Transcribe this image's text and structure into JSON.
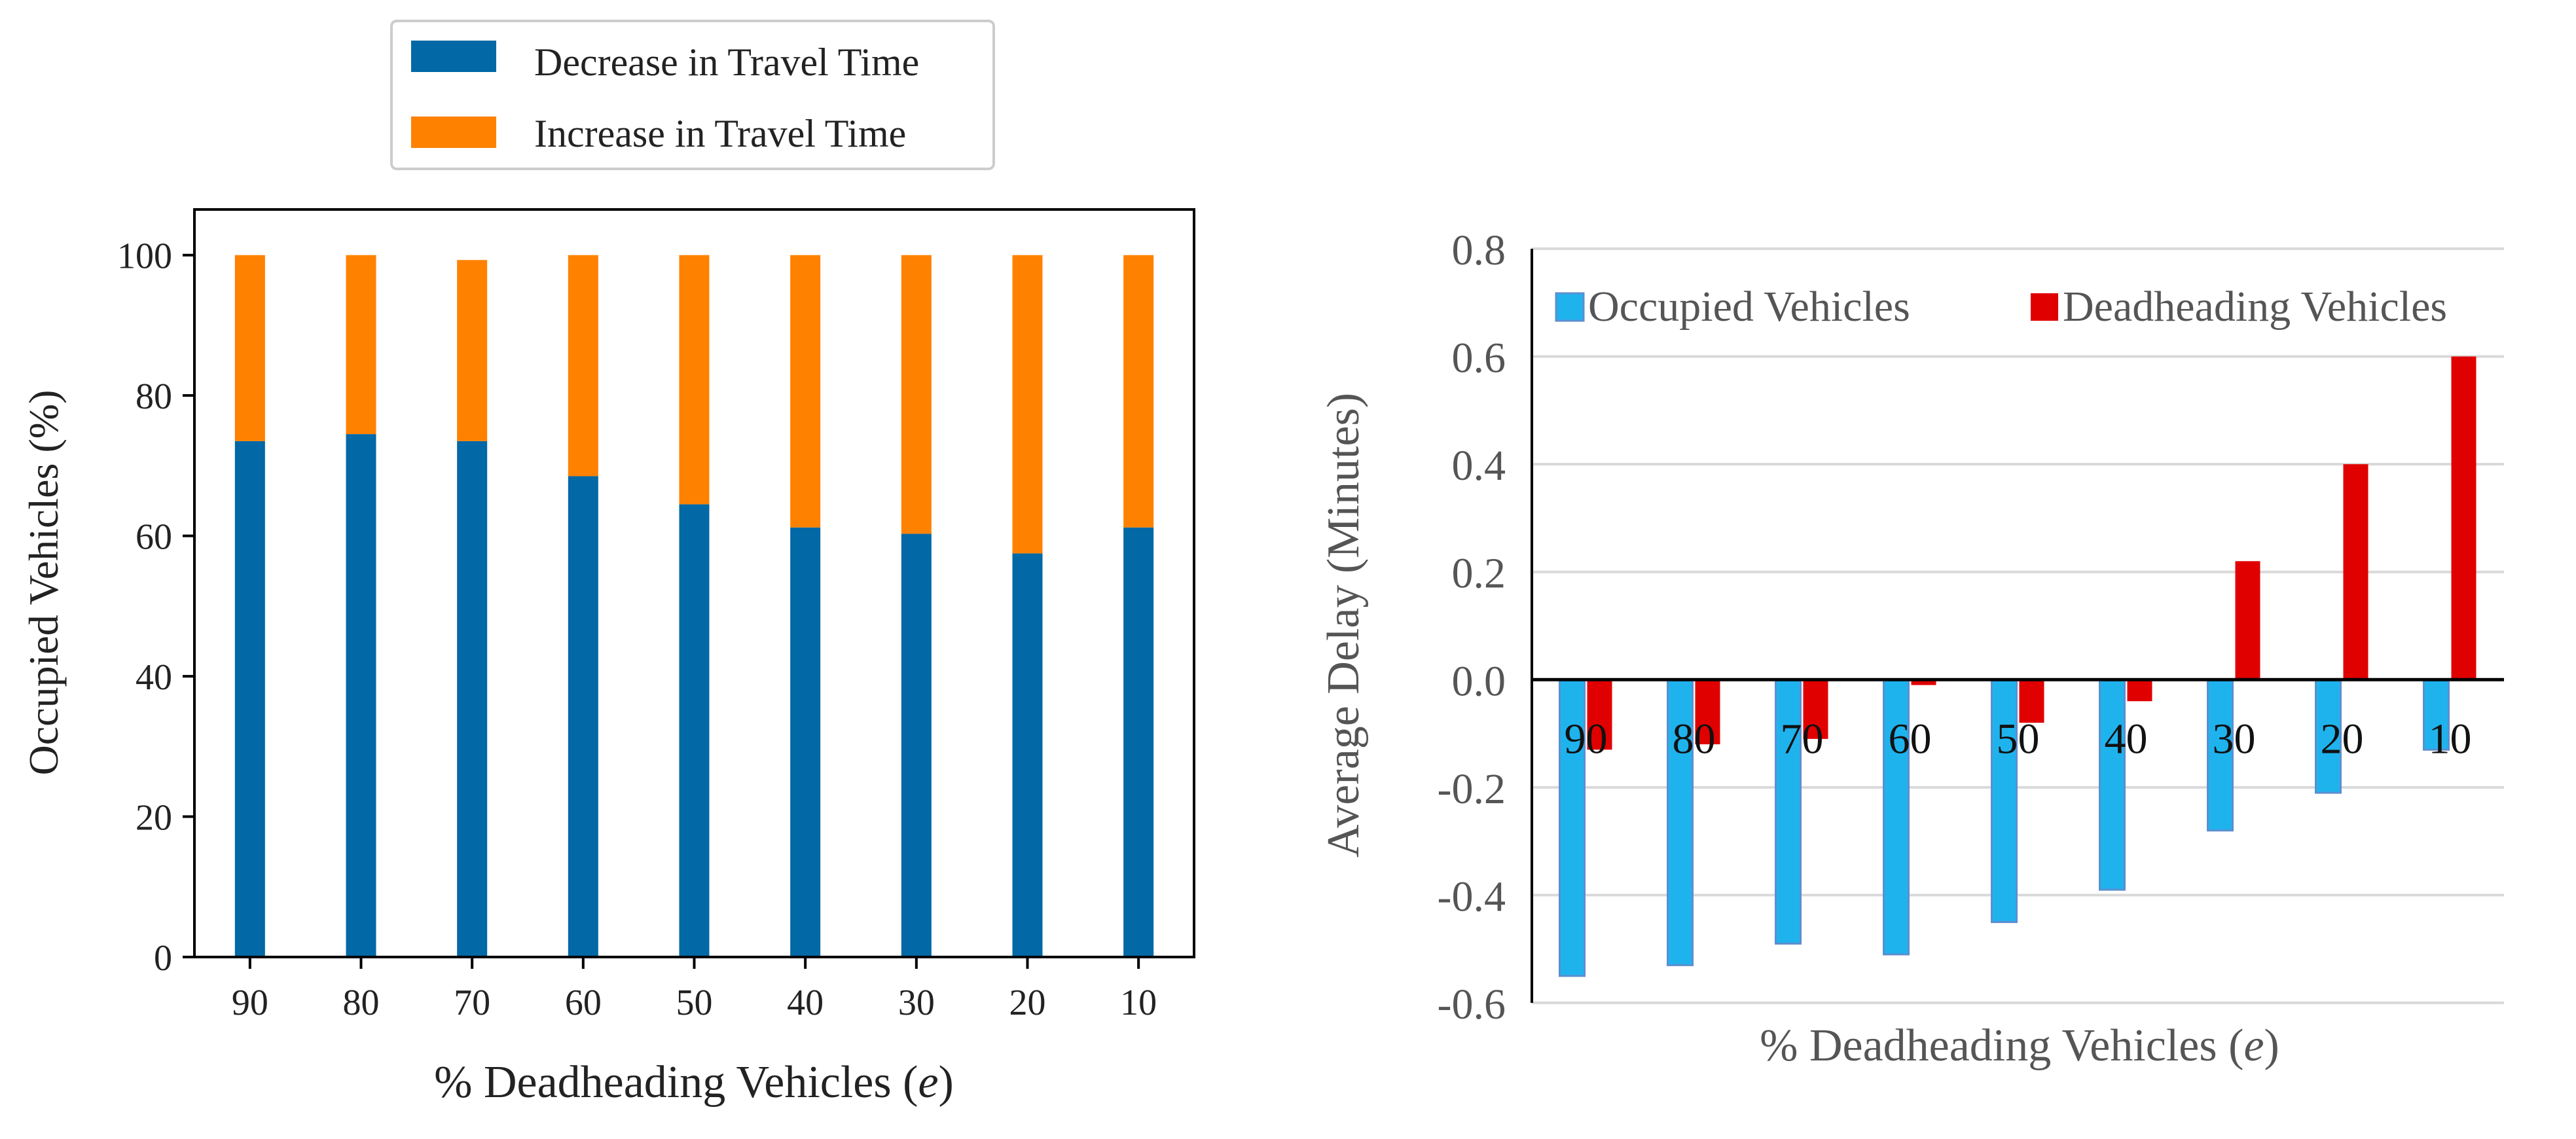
{
  "colors": {
    "decrease": "#0268a6",
    "increase": "#ff8100",
    "occupied": "#1fb3ee",
    "occupied_edge": "#5b8fcf",
    "deadheading": "#e00000",
    "axis": "#000000",
    "grid": "#d9d9d9",
    "text": "#222222",
    "right_text": "#555555"
  },
  "chart_data": [
    {
      "type": "bar",
      "stacked": true,
      "title": "",
      "xlabel_main": "% Deadheading Vehicles (",
      "xlabel_var": "e",
      "xlabel_end": ")",
      "ylabel": "Occupied Vehicles (%)",
      "categories": [
        "90",
        "80",
        "70",
        "60",
        "50",
        "40",
        "30",
        "20",
        "10"
      ],
      "series": [
        {
          "name": "Decrease in Travel Time",
          "color_key": "decrease",
          "values": [
            73.5,
            74.5,
            73.5,
            68.5,
            64.5,
            61.2,
            60.3,
            57.5,
            61.2
          ]
        },
        {
          "name": "Increase in Travel Time",
          "color_key": "increase",
          "values": [
            26.5,
            25.5,
            25.8,
            31.5,
            35.5,
            38.8,
            39.7,
            42.5,
            38.8
          ]
        }
      ],
      "ylim": [
        0,
        106.5
      ],
      "yticks": [
        0,
        20,
        40,
        60,
        80,
        100
      ],
      "ytick_labels": [
        "0",
        "20",
        "40",
        "60",
        "80",
        "100"
      ],
      "grid": false,
      "legend_position": "top"
    },
    {
      "type": "bar",
      "stacked": false,
      "title": "",
      "xlabel_main": "% Deadheading Vehicles (",
      "xlabel_var": "e",
      "xlabel_end": ")",
      "ylabel": "Average Delay  (Minutes)",
      "categories": [
        "90",
        "80",
        "70",
        "60",
        "50",
        "40",
        "30",
        "20",
        "10"
      ],
      "series": [
        {
          "name": "Occupied Vehicles",
          "color_key": "occupied",
          "values": [
            -0.55,
            -0.53,
            -0.49,
            -0.51,
            -0.45,
            -0.39,
            -0.28,
            -0.21,
            -0.13
          ]
        },
        {
          "name": "Deadheading Vehicles",
          "color_key": "deadheading",
          "values": [
            -0.13,
            -0.12,
            -0.11,
            -0.01,
            -0.08,
            -0.04,
            0.22,
            0.4,
            0.6
          ]
        }
      ],
      "ylim": [
        -0.6,
        0.8
      ],
      "yticks": [
        -0.6,
        -0.4,
        -0.2,
        0,
        0.2,
        0.4,
        0.6,
        0.8
      ],
      "ytick_labels": [
        "-0.6",
        "-0.4",
        "-0.2",
        "0.0",
        "0.2",
        "0.4",
        "0.6",
        "0.8"
      ],
      "grid": true,
      "legend_position": "top"
    }
  ]
}
